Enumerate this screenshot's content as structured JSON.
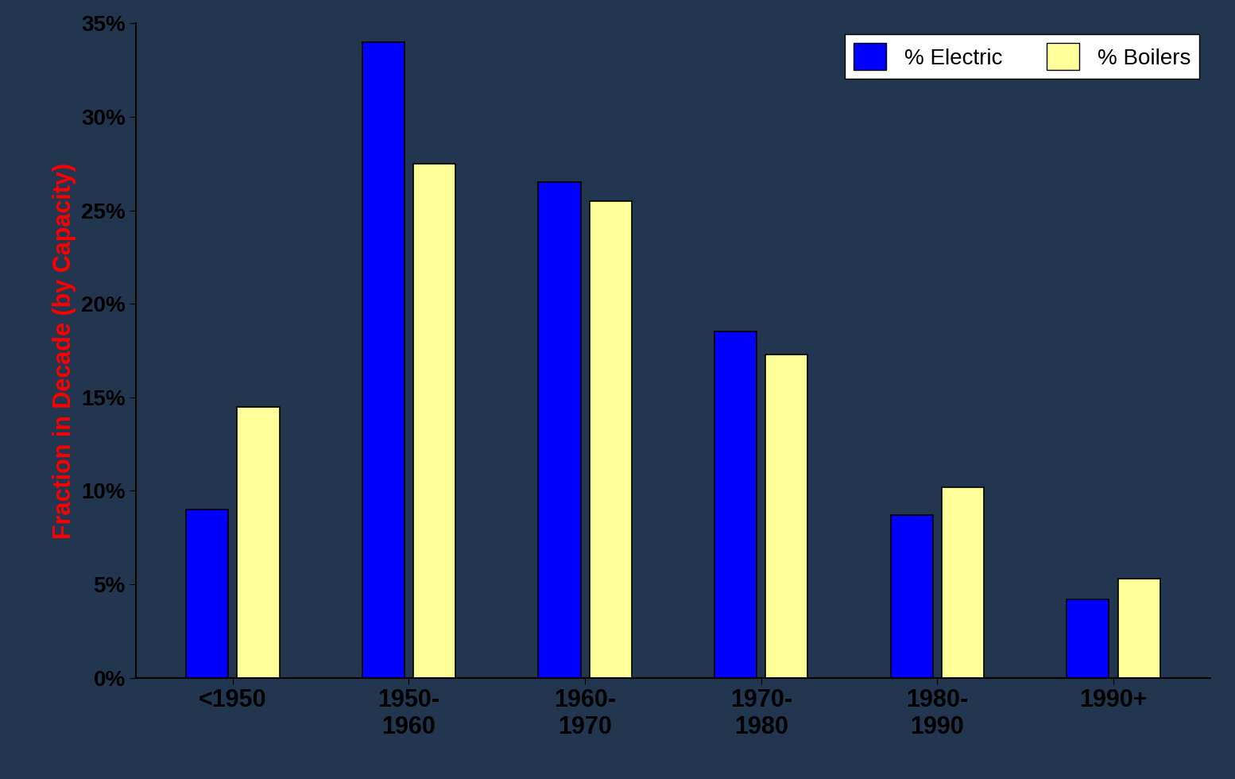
{
  "chart_data": {
    "type": "bar",
    "y_label": "Fraction in Decade (by Capacity)",
    "categories": [
      "<1950",
      "1950-\n1960",
      "1960-\n1970",
      "1970-\n1980",
      "1980-\n1990",
      "1990+"
    ],
    "series": [
      {
        "name": "% Electric",
        "color": "#0000ff",
        "values": [
          9.0,
          34.0,
          26.5,
          18.5,
          8.7,
          4.2
        ]
      },
      {
        "name": "% Boilers",
        "color": "#ffff99",
        "values": [
          14.5,
          27.5,
          25.5,
          17.3,
          10.2,
          5.3
        ]
      }
    ],
    "ylim": [
      0,
      35
    ],
    "yticks": [
      {
        "value": 0,
        "label": "0%"
      },
      {
        "value": 5,
        "label": "5%"
      },
      {
        "value": 10,
        "label": "10%"
      },
      {
        "value": 15,
        "label": "15%"
      },
      {
        "value": 20,
        "label": "20%"
      },
      {
        "value": 25,
        "label": "25%"
      },
      {
        "value": 30,
        "label": "30%"
      },
      {
        "value": 35,
        "label": "35%"
      }
    ],
    "legend": "upper right",
    "grid": false
  }
}
